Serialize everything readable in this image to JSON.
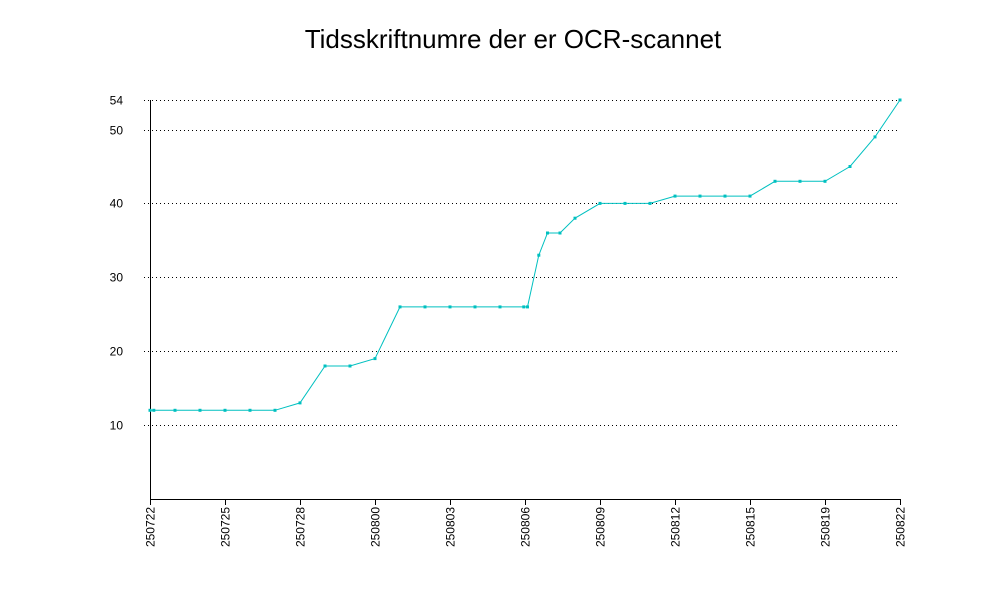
{
  "chart_data": {
    "type": "line",
    "title": "Tidsskriftnumre der er OCR-scannet",
    "xlabel": "",
    "ylabel": "",
    "x_tick_labels": [
      "250722",
      "250725",
      "250728",
      "250800",
      "250803",
      "250806",
      "250809",
      "250812",
      "250815",
      "250819",
      "250822"
    ],
    "y_ticks": [
      10,
      20,
      30,
      40,
      50,
      54
    ],
    "ylim": [
      0,
      54
    ],
    "xlim": [
      0,
      30
    ],
    "grid": "horizontal-dotted",
    "colors": {
      "line": "#00c0c0"
    },
    "series": [
      {
        "x": [
          0,
          0.15,
          1,
          2,
          3,
          4,
          5,
          6,
          7,
          8,
          9,
          10,
          11,
          12,
          13,
          14,
          14.95,
          15.1,
          15.55,
          15.9,
          16.4,
          17,
          18,
          19,
          20,
          21,
          22,
          23,
          24,
          25,
          26,
          27,
          28,
          29,
          30
        ],
        "values": [
          12,
          12,
          12,
          12,
          12,
          12,
          12,
          13,
          18,
          18,
          19,
          26,
          26,
          26,
          26,
          26,
          26,
          26,
          33,
          36,
          36,
          38,
          40,
          40,
          40,
          41,
          41,
          41,
          41,
          43,
          43,
          43,
          45,
          49,
          54
        ]
      }
    ]
  }
}
